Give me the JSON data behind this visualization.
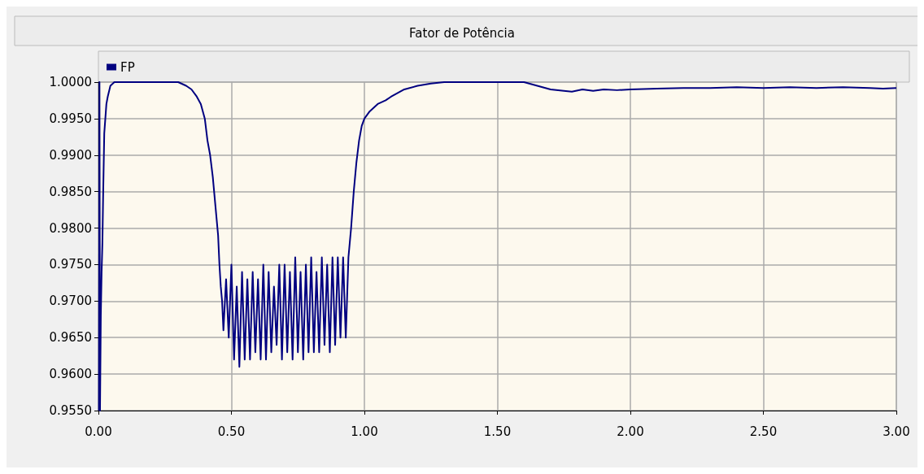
{
  "chart_data": {
    "type": "line",
    "title": "Fator de Potência",
    "legend": "top left",
    "grid": true,
    "marker": "none",
    "line_style": "solid",
    "xlim": [
      0,
      3
    ],
    "xticks": [
      {
        "value": 0,
        "label": "0.00"
      },
      {
        "value": 0.5,
        "label": "0.50"
      },
      {
        "value": 1,
        "label": "1.00"
      },
      {
        "value": 1.5,
        "label": "1.50"
      },
      {
        "value": 2,
        "label": "2.00"
      },
      {
        "value": 2.5,
        "label": "2.50"
      },
      {
        "value": 3,
        "label": "3.00"
      }
    ],
    "ylim": [
      0.955,
      1
    ],
    "yticks": [
      {
        "value": 0.955,
        "label": "0.9550"
      },
      {
        "value": 0.96,
        "label": "0.9600"
      },
      {
        "value": 0.965,
        "label": "0.9650"
      },
      {
        "value": 0.97,
        "label": "0.9700"
      },
      {
        "value": 0.975,
        "label": "0.9750"
      },
      {
        "value": 0.98,
        "label": "0.9800"
      },
      {
        "value": 0.985,
        "label": "0.9850"
      },
      {
        "value": 0.99,
        "label": "0.9900"
      },
      {
        "value": 0.995,
        "label": "0.9950"
      },
      {
        "value": 1,
        "label": "1.0000"
      }
    ],
    "series": [
      {
        "name": "FP",
        "color": "#000080",
        "x": [
          0.002,
          0.004,
          0.006,
          0.009,
          0.012,
          0.015,
          0.018,
          0.022,
          0.026,
          0.03,
          0.035,
          0.045,
          0.06,
          0.1,
          0.2,
          0.3,
          0.33,
          0.35,
          0.37,
          0.385,
          0.4,
          0.41,
          0.42,
          0.43,
          0.44,
          0.45,
          0.455,
          0.46,
          0.465,
          0.47,
          0.48,
          0.49,
          0.5,
          0.51,
          0.52,
          0.53,
          0.54,
          0.55,
          0.56,
          0.57,
          0.58,
          0.59,
          0.6,
          0.61,
          0.62,
          0.63,
          0.64,
          0.65,
          0.66,
          0.67,
          0.68,
          0.69,
          0.7,
          0.71,
          0.72,
          0.73,
          0.74,
          0.75,
          0.76,
          0.77,
          0.78,
          0.79,
          0.8,
          0.81,
          0.82,
          0.83,
          0.84,
          0.85,
          0.86,
          0.87,
          0.88,
          0.89,
          0.9,
          0.91,
          0.92,
          0.93,
          0.94,
          0.95,
          0.96,
          0.97,
          0.98,
          0.99,
          1.0,
          1.02,
          1.05,
          1.08,
          1.1,
          1.15,
          1.2,
          1.25,
          1.3,
          1.4,
          1.5,
          1.6,
          1.65,
          1.7,
          1.75,
          1.78,
          1.82,
          1.86,
          1.9,
          1.95,
          2.0,
          2.1,
          2.2,
          2.3,
          2.4,
          2.5,
          2.6,
          2.7,
          2.8,
          2.9,
          2.95,
          3.0
        ],
        "values": [
          0.955,
          1.0,
          0.955,
          0.968,
          0.974,
          0.978,
          0.985,
          0.993,
          0.995,
          0.997,
          0.998,
          0.9995,
          1.0,
          1.0,
          1.0,
          1.0,
          0.9995,
          0.999,
          0.998,
          0.997,
          0.995,
          0.992,
          0.99,
          0.987,
          0.983,
          0.979,
          0.975,
          0.972,
          0.97,
          0.966,
          0.973,
          0.965,
          0.975,
          0.962,
          0.972,
          0.961,
          0.974,
          0.962,
          0.973,
          0.962,
          0.974,
          0.963,
          0.973,
          0.962,
          0.975,
          0.962,
          0.974,
          0.963,
          0.972,
          0.964,
          0.975,
          0.962,
          0.975,
          0.963,
          0.974,
          0.962,
          0.976,
          0.963,
          0.974,
          0.962,
          0.975,
          0.963,
          0.976,
          0.963,
          0.974,
          0.963,
          0.976,
          0.964,
          0.975,
          0.963,
          0.976,
          0.964,
          0.976,
          0.965,
          0.976,
          0.965,
          0.976,
          0.98,
          0.985,
          0.989,
          0.992,
          0.994,
          0.995,
          0.996,
          0.997,
          0.9975,
          0.998,
          0.999,
          0.9995,
          0.9998,
          1.0,
          1.0,
          1.0,
          1.0,
          0.9995,
          0.999,
          0.9988,
          0.9987,
          0.999,
          0.9988,
          0.999,
          0.9989,
          0.999,
          0.9991,
          0.9992,
          0.9992,
          0.9993,
          0.9992,
          0.9993,
          0.9992,
          0.9993,
          0.9992,
          0.9991,
          0.9992
        ]
      }
    ]
  }
}
